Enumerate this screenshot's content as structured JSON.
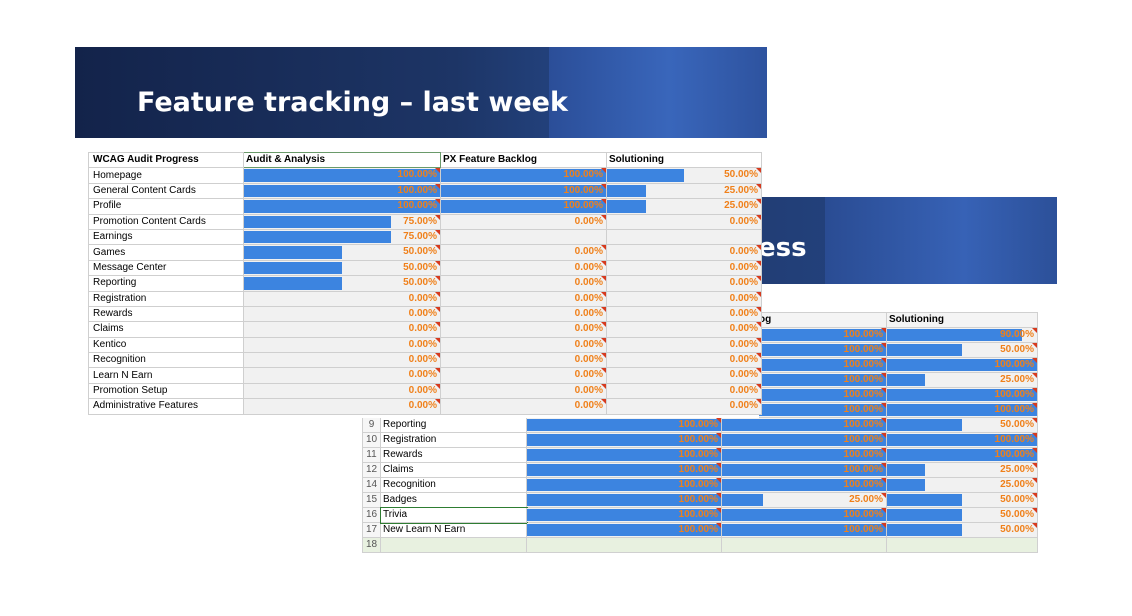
{
  "front": {
    "title": "Feature tracking – last week",
    "headers": [
      "WCAG Audit Progress",
      "Audit & Analysis",
      "PX Feature Backlog",
      "Solutioning"
    ],
    "rows": [
      {
        "name": "Homepage",
        "audit": {
          "v": 1,
          "label": "100.00%"
        },
        "px": {
          "v": 1,
          "label": "100.00%"
        },
        "sol": {
          "v": 0.5,
          "label": "50.00%"
        }
      },
      {
        "name": "General Content Cards",
        "audit": {
          "v": 1,
          "label": "100.00%"
        },
        "px": {
          "v": 1,
          "label": "100.00%"
        },
        "sol": {
          "v": 0.25,
          "label": "25.00%"
        }
      },
      {
        "name": "Profile",
        "audit": {
          "v": 1,
          "label": "100.00%"
        },
        "px": {
          "v": 1,
          "label": "100.00%"
        },
        "sol": {
          "v": 0.25,
          "label": "25.00%"
        }
      },
      {
        "name": "Promotion Content Cards",
        "audit": {
          "v": 0.75,
          "label": "75.00%"
        },
        "px": {
          "v": 0,
          "label": "0.00%"
        },
        "sol": {
          "v": 0,
          "label": "0.00%"
        }
      },
      {
        "name": "Earnings",
        "audit": {
          "v": 0.75,
          "label": "75.00%"
        },
        "px": {
          "v": 0,
          "label": ""
        },
        "sol": {
          "v": 0,
          "label": ""
        }
      },
      {
        "name": "Games",
        "audit": {
          "v": 0.5,
          "label": "50.00%"
        },
        "px": {
          "v": 0,
          "label": "0.00%"
        },
        "sol": {
          "v": 0,
          "label": "0.00%"
        }
      },
      {
        "name": "Message Center",
        "audit": {
          "v": 0.5,
          "label": "50.00%"
        },
        "px": {
          "v": 0,
          "label": "0.00%"
        },
        "sol": {
          "v": 0,
          "label": "0.00%"
        }
      },
      {
        "name": "Reporting",
        "audit": {
          "v": 0.5,
          "label": "50.00%"
        },
        "px": {
          "v": 0,
          "label": "0.00%"
        },
        "sol": {
          "v": 0,
          "label": "0.00%"
        }
      },
      {
        "name": "Registration",
        "audit": {
          "v": 0,
          "label": "0.00%"
        },
        "px": {
          "v": 0,
          "label": "0.00%"
        },
        "sol": {
          "v": 0,
          "label": "0.00%"
        }
      },
      {
        "name": "Rewards",
        "audit": {
          "v": 0,
          "label": "0.00%"
        },
        "px": {
          "v": 0,
          "label": "0.00%"
        },
        "sol": {
          "v": 0,
          "label": "0.00%"
        }
      },
      {
        "name": "Claims",
        "audit": {
          "v": 0,
          "label": "0.00%"
        },
        "px": {
          "v": 0,
          "label": "0.00%"
        },
        "sol": {
          "v": 0,
          "label": "0.00%"
        }
      },
      {
        "name": "Kentico",
        "audit": {
          "v": 0,
          "label": "0.00%"
        },
        "px": {
          "v": 0,
          "label": "0.00%"
        },
        "sol": {
          "v": 0,
          "label": "0.00%"
        }
      },
      {
        "name": "Recognition",
        "audit": {
          "v": 0,
          "label": "0.00%"
        },
        "px": {
          "v": 0,
          "label": "0.00%"
        },
        "sol": {
          "v": 0,
          "label": "0.00%"
        }
      },
      {
        "name": "Learn N Earn",
        "audit": {
          "v": 0,
          "label": "0.00%"
        },
        "px": {
          "v": 0,
          "label": "0.00%"
        },
        "sol": {
          "v": 0,
          "label": "0.00%"
        }
      },
      {
        "name": "Promotion Setup",
        "audit": {
          "v": 0,
          "label": "0.00%"
        },
        "px": {
          "v": 0,
          "label": "0.00%"
        },
        "sol": {
          "v": 0,
          "label": "0.00%"
        }
      },
      {
        "name": "Administrative Features",
        "audit": {
          "v": 0,
          "label": "0.00%"
        },
        "px": {
          "v": 0,
          "label": "0.00%"
        },
        "sol": {
          "v": 0,
          "label": "0.00%"
        }
      }
    ]
  },
  "back": {
    "title_visible": "ess",
    "headers": [
      "e Backlog",
      "Solutioning"
    ],
    "rows": [
      {
        "rn": "",
        "name": "",
        "audit": {
          "v": 0,
          "label": ""
        },
        "px": {
          "v": 1,
          "label": "100.00%"
        },
        "sol": {
          "v": 0.9,
          "label": "90.00%"
        }
      },
      {
        "rn": "",
        "name": "",
        "audit": {
          "v": 0,
          "label": ""
        },
        "px": {
          "v": 1,
          "label": "100.00%"
        },
        "sol": {
          "v": 0.5,
          "label": "50.00%"
        }
      },
      {
        "rn": "",
        "name": "",
        "audit": {
          "v": 0,
          "label": ""
        },
        "px": {
          "v": 1,
          "label": "100.00%"
        },
        "sol": {
          "v": 1,
          "label": "100.00%"
        }
      },
      {
        "rn": "",
        "name": "",
        "audit": {
          "v": 0,
          "label": ""
        },
        "px": {
          "v": 1,
          "label": "100.00%"
        },
        "sol": {
          "v": 0.25,
          "label": "25.00%"
        }
      },
      {
        "rn": "",
        "name": "",
        "audit": {
          "v": 0,
          "label": ""
        },
        "px": {
          "v": 1,
          "label": "100.00%"
        },
        "sol": {
          "v": 1,
          "label": "100.00%"
        }
      },
      {
        "rn": "",
        "name": "",
        "audit": {
          "v": 0,
          "label": ""
        },
        "px": {
          "v": 1,
          "label": "100.00%"
        },
        "sol": {
          "v": 1,
          "label": "100.00%"
        }
      },
      {
        "rn": "9",
        "name": "Reporting",
        "audit": {
          "v": 1,
          "label": "100.00%"
        },
        "px": {
          "v": 1,
          "label": "100.00%"
        },
        "sol": {
          "v": 0.5,
          "label": "50.00%"
        }
      },
      {
        "rn": "10",
        "name": "Registration",
        "audit": {
          "v": 1,
          "label": "100.00%"
        },
        "px": {
          "v": 1,
          "label": "100.00%"
        },
        "sol": {
          "v": 1,
          "label": "100.00%"
        }
      },
      {
        "rn": "11",
        "name": "Rewards",
        "audit": {
          "v": 1,
          "label": "100.00%"
        },
        "px": {
          "v": 1,
          "label": "100.00%"
        },
        "sol": {
          "v": 1,
          "label": "100.00%"
        }
      },
      {
        "rn": "12",
        "name": "Claims",
        "audit": {
          "v": 1,
          "label": "100.00%"
        },
        "px": {
          "v": 1,
          "label": "100.00%"
        },
        "sol": {
          "v": 0.25,
          "label": "25.00%"
        }
      },
      {
        "rn": "14",
        "name": "Recognition",
        "audit": {
          "v": 1,
          "label": "100.00%"
        },
        "px": {
          "v": 1,
          "label": "100.00%"
        },
        "sol": {
          "v": 0.25,
          "label": "25.00%"
        }
      },
      {
        "rn": "15",
        "name": "Badges",
        "audit": {
          "v": 1,
          "label": "100.00%"
        },
        "px": {
          "v": 0.25,
          "label": "25.00%"
        },
        "sol": {
          "v": 0.5,
          "label": "50.00%"
        }
      },
      {
        "rn": "16",
        "name": "Trivia",
        "audit": {
          "v": 1,
          "label": "100.00%"
        },
        "px": {
          "v": 1,
          "label": "100.00%"
        },
        "sol": {
          "v": 0.5,
          "label": "50.00%"
        }
      },
      {
        "rn": "17",
        "name": "New Learn N Earn",
        "audit": {
          "v": 1,
          "label": "100.00%"
        },
        "px": {
          "v": 1,
          "label": "100.00%"
        },
        "sol": {
          "v": 0.5,
          "label": "50.00%"
        }
      },
      {
        "rn": "18",
        "name": "",
        "audit": {
          "v": 0,
          "label": ""
        },
        "px": {
          "v": 0,
          "label": ""
        },
        "sol": {
          "v": 0,
          "label": ""
        }
      }
    ]
  },
  "colors": {
    "bar": "#3c84e0",
    "pct": "#f0801a",
    "flag": "#d63a1e"
  }
}
